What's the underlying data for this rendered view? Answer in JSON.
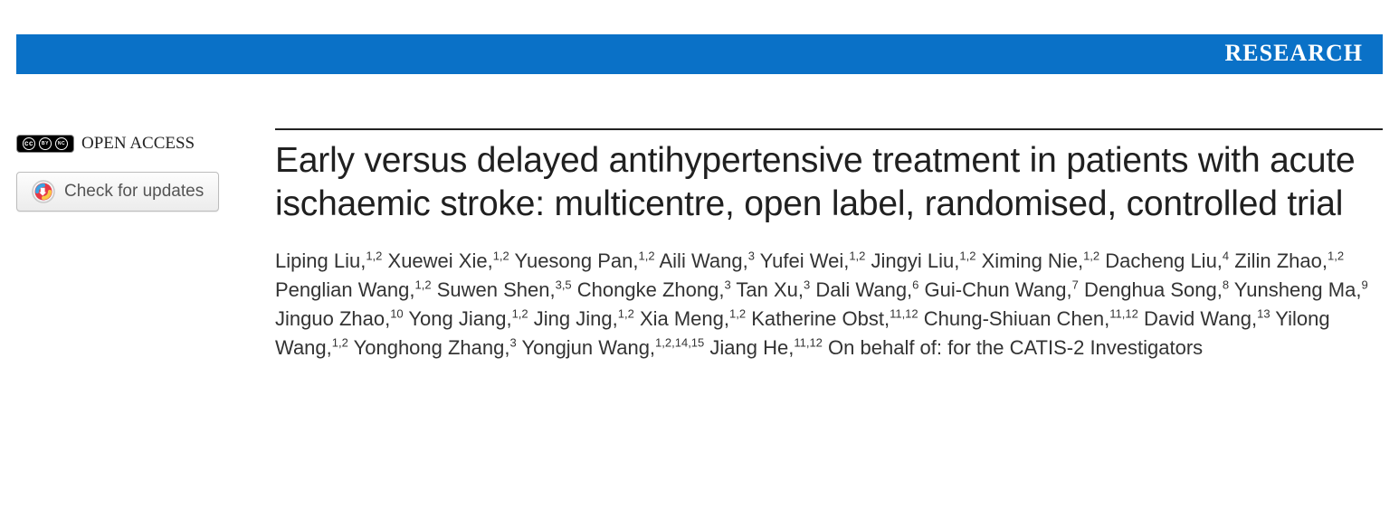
{
  "banner": {
    "text": "RESEARCH",
    "bg_color": "#0a71c7",
    "text_color": "#ffffff"
  },
  "left": {
    "open_access_label": "OPEN ACCESS",
    "cc_parts": [
      "cc",
      "BY",
      "NC"
    ],
    "updates_label": "Check for updates"
  },
  "title": "Early versus delayed antihypertensive treatment in patients with acute ischaemic stroke: multicentre, open label, randomised, controlled trial",
  "authors": [
    {
      "name": "Liping Liu",
      "aff": "1,2"
    },
    {
      "name": "Xuewei Xie",
      "aff": "1,2"
    },
    {
      "name": "Yuesong Pan",
      "aff": "1,2"
    },
    {
      "name": "Aili Wang",
      "aff": "3"
    },
    {
      "name": "Yufei Wei",
      "aff": "1,2"
    },
    {
      "name": "Jingyi Liu",
      "aff": "1,2"
    },
    {
      "name": "Ximing Nie",
      "aff": "1,2"
    },
    {
      "name": "Dacheng Liu",
      "aff": "4"
    },
    {
      "name": "Zilin Zhao",
      "aff": "1,2"
    },
    {
      "name": "Penglian Wang",
      "aff": "1,2"
    },
    {
      "name": "Suwen Shen",
      "aff": "3,5"
    },
    {
      "name": "Chongke Zhong",
      "aff": "3"
    },
    {
      "name": "Tan Xu",
      "aff": "3"
    },
    {
      "name": "Dali Wang",
      "aff": "6"
    },
    {
      "name": "Gui-Chun Wang",
      "aff": "7"
    },
    {
      "name": "Denghua Song",
      "aff": "8"
    },
    {
      "name": "Yunsheng Ma",
      "aff": "9"
    },
    {
      "name": "Jinguo Zhao",
      "aff": "10"
    },
    {
      "name": "Yong Jiang",
      "aff": "1,2"
    },
    {
      "name": "Jing Jing",
      "aff": "1,2"
    },
    {
      "name": "Xia Meng",
      "aff": "1,2"
    },
    {
      "name": "Katherine Obst",
      "aff": "11,12"
    },
    {
      "name": "Chung-Shiuan Chen",
      "aff": "11,12"
    },
    {
      "name": "David Wang",
      "aff": "13"
    },
    {
      "name": "Yilong Wang",
      "aff": "1,2"
    },
    {
      "name": "Yonghong Zhang",
      "aff": "3"
    },
    {
      "name": "Yongjun Wang",
      "aff": "1,2,14,15"
    },
    {
      "name": "Jiang He",
      "aff": "11,12"
    }
  ],
  "authors_suffix": "On behalf of: for the CATIS-2 Investigators"
}
